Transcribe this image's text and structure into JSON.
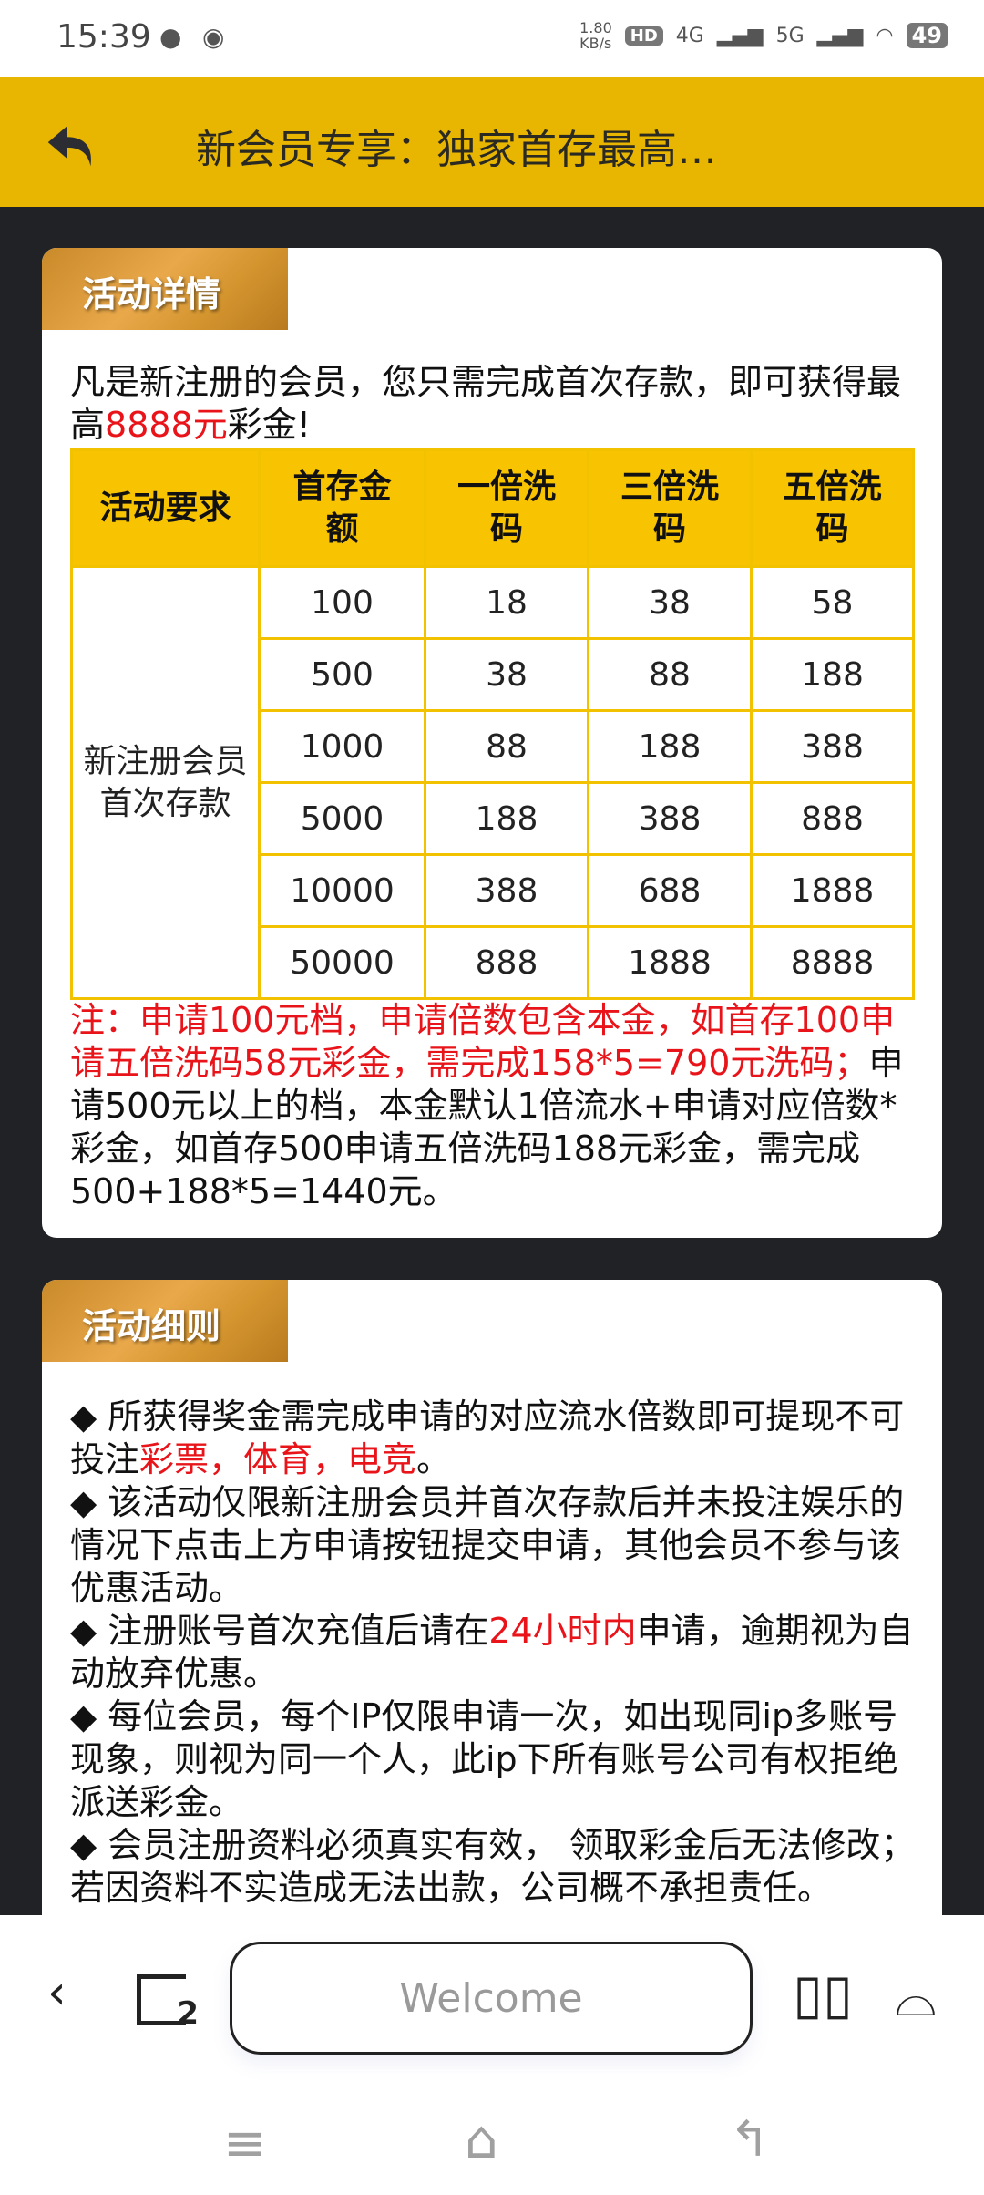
{
  "status_bar": {
    "time": "15:39",
    "net_speed": "1.80",
    "net_unit": "KB/s",
    "signal_1": "4G",
    "signal_2": "5G",
    "battery": "49",
    "icons": [
      "message-icon",
      "chrome-icon",
      "hd-icon",
      "signal-icon",
      "wifi-icon",
      "battery-icon"
    ]
  },
  "header": {
    "title": "新会员专享：独家首存最高…",
    "back_icon": "back-arrow-icon",
    "bg_color": "#E8B600"
  },
  "details": {
    "badge": "活动详情",
    "intro_a": "凡是新注册的会员，您只需完成首次存款，即可获得最高",
    "intro_red": "8888元",
    "intro_b": "彩金!",
    "table": {
      "headers": [
        "活动要求",
        "首存金额",
        "一倍洗码",
        "三倍洗码",
        "五倍洗码"
      ],
      "requirement": "新注册会员\n首次存款",
      "rows": [
        [
          "100",
          "18",
          "38",
          "58"
        ],
        [
          "500",
          "38",
          "88",
          "188"
        ],
        [
          "1000",
          "88",
          "188",
          "388"
        ],
        [
          "5000",
          "188",
          "388",
          "888"
        ],
        [
          "10000",
          "388",
          "688",
          "1888"
        ],
        [
          "50000",
          "888",
          "1888",
          "8888"
        ]
      ]
    },
    "note_red": "注：申请100元档，申请倍数包含本金，如首存100申请五倍洗码58元彩金，需完成158*5=790元洗码；",
    "note_black": "申请500元以上的档，本金默认1倍流水+申请对应倍数*彩金，如首存500申请五倍洗码188元彩金，需完成500+188*5=1440元。"
  },
  "rules": {
    "badge": "活动细则",
    "r1_a": "◆ 所获得奖金需完成申请的对应流水倍数即可提现不可投注",
    "r1_red": "彩票，体育，电竞",
    "r1_b": "。",
    "r2": "◆ 该活动仅限新注册会员并首次存款后并未投注娱乐的情况下点击上方申请按钮提交申请，其他会员不参与该优惠活动。",
    "r3_a": "◆ 注册账号首次充值后请在",
    "r3_red": "24小时内",
    "r3_b": "申请，逾期视为自动放弃优惠。",
    "r4": "◆ 每位会员，每个IP仅限申请一次，如出现同ip多账号现象，则视为同一个人，此ip下所有账号公司有权拒绝派送彩金。",
    "r5": "◆ 会员注册资料必须真实有效， 领取彩金后无法修改；若因资料不实造成无法出款，公司概不承担责任。"
  },
  "browser": {
    "address": "Welcome",
    "tabs_count": "2"
  }
}
